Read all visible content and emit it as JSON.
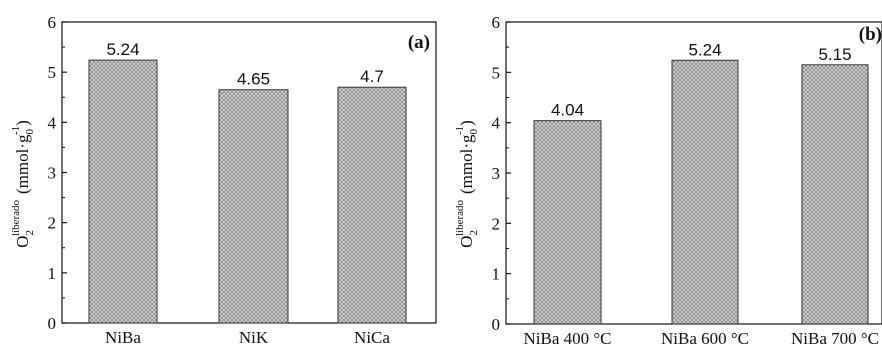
{
  "colors": {
    "bar_fill": "#d7d7d7",
    "bar_hatch": "#8a8a8a",
    "bar_edge": "#333333",
    "axis": "#111111"
  },
  "chart_data": [
    {
      "type": "bar",
      "panel_label": "(a)",
      "categories": [
        "NiBa",
        "NiK",
        "NiCa"
      ],
      "values": [
        5.24,
        4.65,
        4.7
      ],
      "value_labels": [
        "5.24",
        "4.65",
        "4.7"
      ],
      "ylabel": {
        "base": "O",
        "sub": "2",
        "sup": "liberado",
        "unit_open": "(mmol·g",
        "unit_sub": "0",
        "unit_sup": "-1",
        "unit_close": ")"
      },
      "ylim": [
        0,
        6
      ],
      "yticks": [
        "0",
        "1",
        "2",
        "3",
        "4",
        "5",
        "6"
      ],
      "grid": false,
      "legend": "none"
    },
    {
      "type": "bar",
      "panel_label": "(b)",
      "categories": [
        "NiBa 400 °C",
        "NiBa 600 °C",
        "NiBa 700 °C"
      ],
      "values": [
        4.04,
        5.24,
        5.15
      ],
      "value_labels": [
        "4.04",
        "5.24",
        "5.15"
      ],
      "ylabel": {
        "base": "O",
        "sub": "2",
        "sup": "liberado",
        "unit_open": "(mmol·g",
        "unit_sub": "0",
        "unit_sup": "-1",
        "unit_close": ")"
      },
      "ylim": [
        0,
        6
      ],
      "yticks": [
        "0",
        "1",
        "2",
        "3",
        "4",
        "5",
        "6"
      ],
      "grid": false,
      "legend": "none"
    }
  ]
}
